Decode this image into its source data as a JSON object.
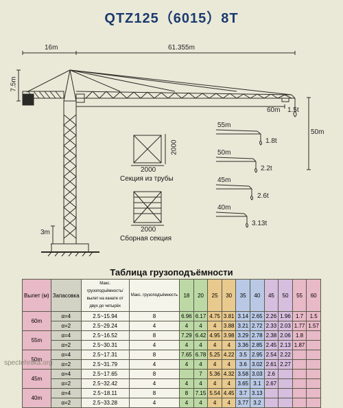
{
  "title": "QTZ125（6015）8T",
  "dimensions": {
    "counter_jib_length": "16m",
    "jib_length": "61.355m",
    "height_to_jib": "7.5m",
    "base_clearance": "3m",
    "trolley_reach": "60m",
    "tip_capacity": "1.5t",
    "hook_drop": "50m"
  },
  "sections": {
    "tube_label": "Секция из трубы",
    "tube_w": "2000",
    "tube_h": "2000",
    "assembled_label": "Сборная секция",
    "assembled_w": "2000"
  },
  "jib_capacities": [
    {
      "reach": "55m",
      "cap": "1.8t"
    },
    {
      "reach": "50m",
      "cap": "2.2t"
    },
    {
      "reach": "45m",
      "cap": "2.6t"
    },
    {
      "reach": "40m",
      "cap": "3.13t"
    }
  ],
  "table": {
    "title": "Таблица грузоподъёмности",
    "col_headers": {
      "boom": "Вылет (м)",
      "reeving": "Запасовка",
      "group1": "Макс. грузоподъёмность/вылет на канате от двух до четырёх",
      "radii": [
        "18",
        "20",
        "25",
        "30",
        "35",
        "40",
        "45",
        "50",
        "55",
        "60"
      ],
      "cap_label": "Макс. грузоподъёмность"
    },
    "col_colors": {
      "18": "hdr-green",
      "20": "hdr-green",
      "25": "hdr-orange",
      "30": "hdr-orange",
      "35": "hdr-blue",
      "40": "hdr-blue",
      "45": "hdr-purple",
      "50": "hdr-purple",
      "55": "hdr-pink",
      "60": "hdr-pink"
    },
    "rows": [
      {
        "boom": "60m",
        "reeving": "α=4",
        "range": "2.5~15.94",
        "mid": "8",
        "vals": [
          "6.96",
          "6.17",
          "4.75",
          "3.81",
          "3.14",
          "2.65",
          "2.26",
          "1.96",
          "1.7",
          "1.5"
        ]
      },
      {
        "boom": "",
        "reeving": "α=2",
        "range": "2.5~29.24",
        "mid": "4",
        "vals": [
          "4",
          "4",
          "4",
          "3.88",
          "3.21",
          "2.72",
          "2.33",
          "2.03",
          "1.77",
          "1.57"
        ]
      },
      {
        "boom": "55m",
        "reeving": "α=4",
        "range": "2.5~16.52",
        "mid": "8",
        "vals": [
          "7.29",
          "6.42",
          "4.95",
          "3.98",
          "3.29",
          "2.78",
          "2.38",
          "2.06",
          "1.8",
          ""
        ]
      },
      {
        "boom": "",
        "reeving": "α=2",
        "range": "2.5~30.31",
        "mid": "4",
        "vals": [
          "4",
          "4",
          "4",
          "4",
          "3.36",
          "2.85",
          "2.45",
          "2.13",
          "1.87",
          ""
        ]
      },
      {
        "boom": "50m",
        "reeving": "α=4",
        "range": "2.5~17.31",
        "mid": "8",
        "vals": [
          "7.65",
          "6.78",
          "5.25",
          "4.22",
          "3.5",
          "2.95",
          "2.54",
          "2.22",
          "",
          ""
        ]
      },
      {
        "boom": "",
        "reeving": "α=2",
        "range": "2.5~31.79",
        "mid": "4",
        "vals": [
          "4",
          "4",
          "4",
          "4",
          "3.6",
          "3.02",
          "2.61",
          "2.27",
          "",
          ""
        ]
      },
      {
        "boom": "45m",
        "reeving": "α=4",
        "range": "2.5~17.65",
        "mid": "8",
        "vals": [
          "",
          "7",
          "5.36",
          "4.32",
          "3.58",
          "3.03",
          "2.6",
          "",
          "",
          ""
        ]
      },
      {
        "boom": "",
        "reeving": "α=2",
        "range": "2.5~32.42",
        "mid": "4",
        "vals": [
          "4",
          "4",
          "4",
          "4",
          "3.65",
          "3.1",
          "2.67",
          "",
          "",
          ""
        ]
      },
      {
        "boom": "40m",
        "reeving": "α=4",
        "range": "2.5~18.11",
        "mid": "8",
        "vals": [
          "8",
          "7.15",
          "5.54",
          "4.45",
          "3.7",
          "3.13",
          "",
          "",
          "",
          ""
        ]
      },
      {
        "boom": "",
        "reeving": "α=2",
        "range": "2.5~33.28",
        "mid": "4",
        "vals": [
          "4",
          "4",
          "4",
          "4",
          "3.77",
          "3.2",
          "",
          "",
          "",
          ""
        ]
      }
    ]
  },
  "watermark": "spectehnika.org",
  "colors": {
    "line": "#2a2a26",
    "truss": "#3b3b34"
  }
}
